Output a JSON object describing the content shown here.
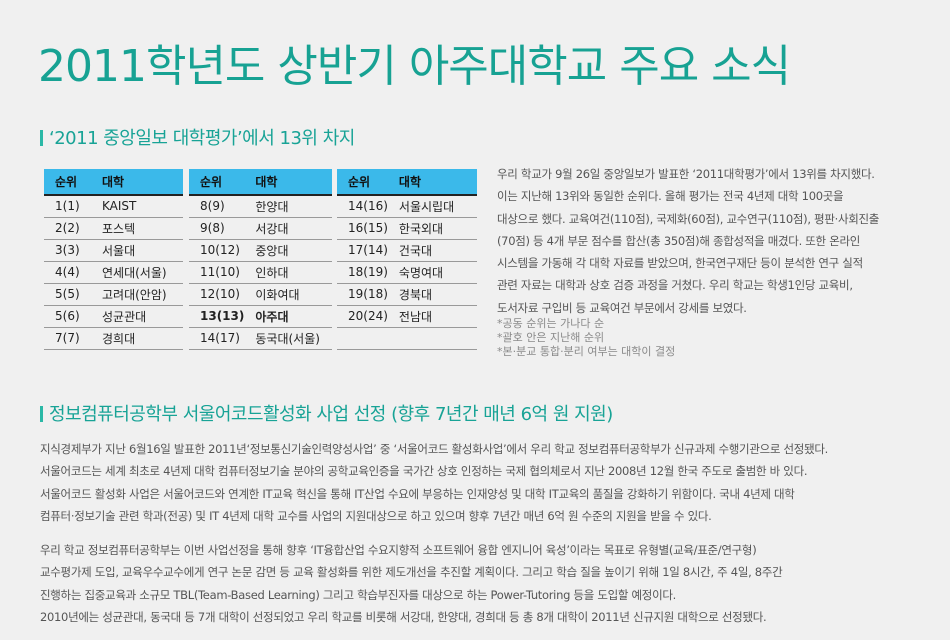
{
  "title": "2011학년도 상반기 아주대학교 주요 소식",
  "section1": {
    "heading": "‘2011 중앙일보 대학평가’에서 13위 차지",
    "col_rank": "순위",
    "col_univ": "대학",
    "tables": [
      [
        [
          "1(1)",
          "KAIST"
        ],
        [
          "2(2)",
          "포스텍"
        ],
        [
          "3(3)",
          "서울대"
        ],
        [
          "4(4)",
          "연세대(서울)"
        ],
        [
          "5(5)",
          "고려대(안암)"
        ],
        [
          "5(6)",
          "성균관대"
        ],
        [
          "7(7)",
          "경희대"
        ]
      ],
      [
        [
          "8(9)",
          "한양대"
        ],
        [
          "9(8)",
          "서강대"
        ],
        [
          "10(12)",
          "중앙대"
        ],
        [
          "11(10)",
          "인하대"
        ],
        [
          "12(10)",
          "이화여대"
        ],
        [
          "13(13)",
          "아주대"
        ],
        [
          "14(17)",
          "동국대(서울)"
        ]
      ],
      [
        [
          "14(16)",
          "서울시립대"
        ],
        [
          "16(15)",
          "한국외대"
        ],
        [
          "17(14)",
          "건국대"
        ],
        [
          "18(19)",
          "숙명여대"
        ],
        [
          "19(18)",
          "경북대"
        ],
        [
          "20(24)",
          "전남대"
        ],
        [
          "",
          ""
        ]
      ]
    ],
    "body": [
      "우리 학교가 9월 26일 중앙일보가 발표한 ‘2011대학평가’에서 13위를 차지했다.",
      "이는 지난해 13위와 동일한 순위다. 올해 평가는 전국 4년제 대학 100곳을",
      "대상으로 했다. 교육여건(110점), 국제화(60점), 교수연구(110점), 평판·사회진출",
      "(70점) 등 4개 부문 점수를 합산(총 350점)해 종합성적을 매겼다. 또한 온라인",
      "시스템을 가동해 각 대학 자료를 받았으며, 한국연구재단 등이 분석한 연구 실적",
      "관련 자료는 대학과 상호 검증 과정을 거쳤다. 우리 학교는 학생1인당 교육비,",
      "도서자료 구입비 등 교육여건 부문에서 강세를 보였다."
    ],
    "notes": [
      "*공동 순위는 가나다 순",
      "*괄호 안은 지난해 순위",
      "*본·분교 통합·분리 여부는 대학이 결정"
    ]
  },
  "section2": {
    "heading": "정보컴퓨터공학부 서울어코드활성화 사업 선정 (향후 7년간 매년 6억 원 지원)",
    "para1": [
      "지식경제부가 지난 6월16일 발표한 2011년‘정보통신기술인력양성사업’ 중 ‘서울어코드 활성화사업’에서 우리 학교 정보컴퓨터공학부가 신규과제 수행기관으로 선정됐다.",
      "서울어코드는 세계 최초로 4년제 대학 컴퓨터정보기술 분야의 공학교육인증을 국가간 상호 인정하는 국제 협의체로서 지난 2008년 12월 한국 주도로 출범한 바 있다.",
      "서울어코드 활성화 사업은 서울어코드와 연계한 IT교육 혁신을 통해 IT산업 수요에 부응하는 인재양성 및 대학 IT교육의 품질을 강화하기 위함이다. 국내 4년제 대학",
      "컴퓨터·정보기술 관련 학과(전공) 및 IT 4년제 대학 교수를 사업의 지원대상으로 하고 있으며 향후 7년간 매년 6억 원 수준의 지원을 받을 수 있다."
    ],
    "para2": [
      "우리 학교 정보컴퓨터공학부는 이번 사업선정을 통해 향후 ‘IT융합산업 수요지향적 소프트웨어 융합 엔지니어 육성’이라는 목표로 유형별(교육/표준/연구형)",
      "교수평가제 도입, 교육우수교수에게 연구 논문 감면 등 교육 활성화를 위한 제도개선을 추진할 계획이다. 그리고 학습 질을 높이기 위해 1일 8시간, 주 4일, 8주간",
      "진행하는 집중교육과 소규모 TBL(Team-Based Learning) 그리고 학습부진자를 대상으로 하는 Power-Tutoring 등을 도입할 예정이다.",
      "2010년에는 성균관대, 동국대 등 7개 대학이 선정되었고 우리 학교를 비롯해 서강대, 한양대, 경희대 등 총 8개 대학이 2011년 신규지원 대학으로 선정됐다."
    ]
  },
  "colors": {
    "title": "#17a293",
    "table_header": "#3bb9ea",
    "background": "#f0f0f0"
  }
}
